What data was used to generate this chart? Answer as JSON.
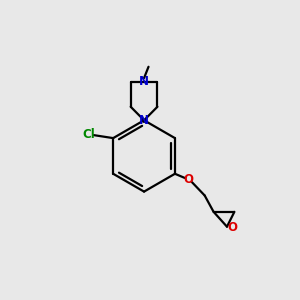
{
  "background_color": "#e8e8e8",
  "bond_color": "#000000",
  "N_color": "#0000cc",
  "O_color": "#dd0000",
  "Cl_color": "#008800",
  "line_width": 1.6,
  "figsize": [
    3.0,
    3.0
  ],
  "dpi": 100,
  "xlim": [
    0,
    10
  ],
  "ylim": [
    0,
    10
  ]
}
